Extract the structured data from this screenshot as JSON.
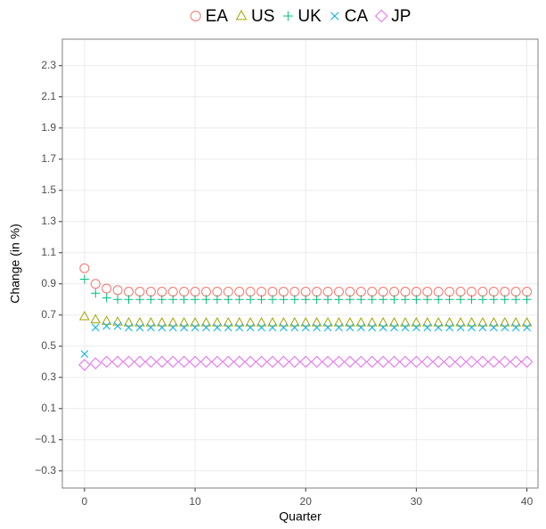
{
  "chart_data": {
    "type": "scatter",
    "x_label": "Quarter",
    "y_label": "Change (in %)",
    "x": [
      0,
      1,
      2,
      3,
      4,
      5,
      6,
      7,
      8,
      9,
      10,
      11,
      12,
      13,
      14,
      15,
      16,
      17,
      18,
      19,
      20,
      21,
      22,
      23,
      24,
      25,
      26,
      27,
      28,
      29,
      30,
      31,
      32,
      33,
      34,
      35,
      36,
      37,
      38,
      39,
      40
    ],
    "series": [
      {
        "name": "EA",
        "color": "#F8766D",
        "marker": "circle",
        "values": [
          1.0,
          0.9,
          0.87,
          0.86,
          0.85,
          0.85,
          0.85,
          0.85,
          0.85,
          0.85,
          0.85,
          0.85,
          0.85,
          0.85,
          0.85,
          0.85,
          0.85,
          0.85,
          0.85,
          0.85,
          0.85,
          0.85,
          0.85,
          0.85,
          0.85,
          0.85,
          0.85,
          0.85,
          0.85,
          0.85,
          0.85,
          0.85,
          0.85,
          0.85,
          0.85,
          0.85,
          0.85,
          0.85,
          0.85,
          0.85,
          0.85
        ]
      },
      {
        "name": "US",
        "color": "#A3A500",
        "marker": "triangle",
        "values": [
          0.69,
          0.67,
          0.66,
          0.655,
          0.65,
          0.65,
          0.65,
          0.65,
          0.65,
          0.65,
          0.65,
          0.65,
          0.65,
          0.65,
          0.65,
          0.65,
          0.65,
          0.65,
          0.65,
          0.65,
          0.65,
          0.65,
          0.65,
          0.65,
          0.65,
          0.65,
          0.65,
          0.65,
          0.65,
          0.65,
          0.65,
          0.65,
          0.65,
          0.65,
          0.65,
          0.65,
          0.65,
          0.65,
          0.65,
          0.65,
          0.65
        ]
      },
      {
        "name": "UK",
        "color": "#00BF7D",
        "marker": "plus",
        "values": [
          0.93,
          0.84,
          0.81,
          0.8,
          0.8,
          0.8,
          0.8,
          0.8,
          0.8,
          0.8,
          0.8,
          0.8,
          0.8,
          0.8,
          0.8,
          0.8,
          0.8,
          0.8,
          0.8,
          0.8,
          0.8,
          0.8,
          0.8,
          0.8,
          0.8,
          0.8,
          0.8,
          0.8,
          0.8,
          0.8,
          0.8,
          0.8,
          0.8,
          0.8,
          0.8,
          0.8,
          0.8,
          0.8,
          0.8,
          0.8,
          0.8
        ]
      },
      {
        "name": "CA",
        "color": "#00B0F6",
        "marker": "cross",
        "values": [
          0.45,
          0.62,
          0.63,
          0.63,
          0.62,
          0.62,
          0.62,
          0.62,
          0.62,
          0.62,
          0.62,
          0.62,
          0.62,
          0.62,
          0.62,
          0.62,
          0.62,
          0.62,
          0.62,
          0.62,
          0.62,
          0.62,
          0.62,
          0.62,
          0.62,
          0.62,
          0.62,
          0.62,
          0.62,
          0.62,
          0.62,
          0.62,
          0.62,
          0.62,
          0.62,
          0.62,
          0.62,
          0.62,
          0.62,
          0.62,
          0.62
        ]
      },
      {
        "name": "JP",
        "color": "#E76BF3",
        "marker": "diamond",
        "values": [
          0.38,
          0.39,
          0.4,
          0.4,
          0.4,
          0.4,
          0.4,
          0.4,
          0.4,
          0.4,
          0.4,
          0.4,
          0.4,
          0.4,
          0.4,
          0.4,
          0.4,
          0.4,
          0.4,
          0.4,
          0.4,
          0.4,
          0.4,
          0.4,
          0.4,
          0.4,
          0.4,
          0.4,
          0.4,
          0.4,
          0.4,
          0.4,
          0.4,
          0.4,
          0.4,
          0.4,
          0.4,
          0.4,
          0.4,
          0.4,
          0.4
        ]
      }
    ],
    "xlim": [
      -2,
      41
    ],
    "xticks": [
      0,
      10,
      20,
      30,
      40
    ],
    "ylim": [
      -0.41,
      2.47
    ],
    "yticks": [
      {
        "value": -0.3,
        "label": "−0.3"
      },
      {
        "value": -0.1,
        "label": "−0.1"
      },
      0.1,
      0.3,
      0.5,
      0.7,
      0.9,
      1.1,
      1.3,
      1.5,
      1.7,
      1.9,
      2.1,
      2.3
    ],
    "grid": true,
    "legend_position": "top"
  }
}
